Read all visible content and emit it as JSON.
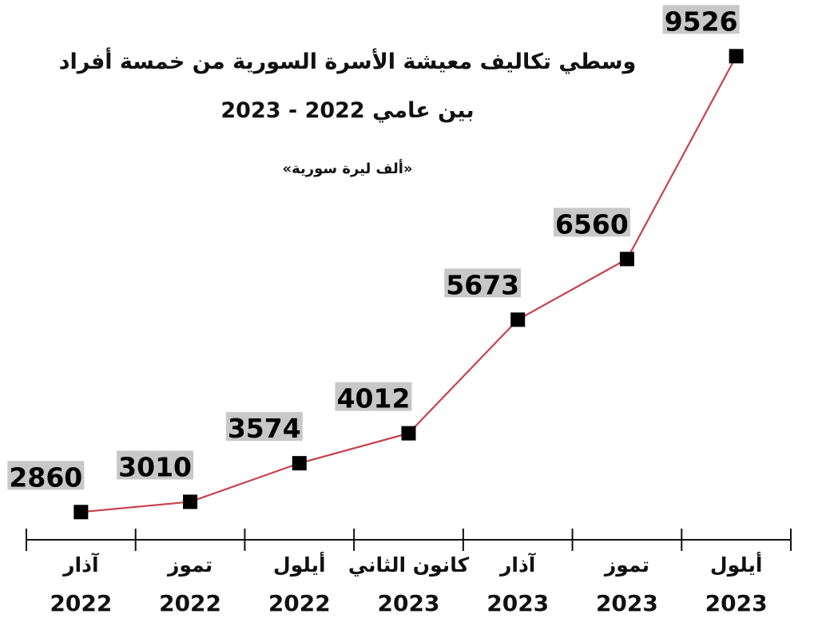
{
  "chart_data": {
    "type": "line",
    "title": "وسطي تكاليف معيشة الأسرة السورية من خمسة أفراد",
    "subtitle": "بين عامي 2022 - 2023",
    "unit": "«ألف ليرة سورية»",
    "categories": [
      {
        "month": "آذار",
        "year": "2022"
      },
      {
        "month": "تموز",
        "year": "2022"
      },
      {
        "month": "أيلول",
        "year": "2022"
      },
      {
        "month": "كانون الثاني",
        "year": "2023"
      },
      {
        "month": "آذار",
        "year": "2023"
      },
      {
        "month": "تموز",
        "year": "2023"
      },
      {
        "month": "أيلول",
        "year": "2023"
      }
    ],
    "values": [
      2860,
      3010,
      3574,
      4012,
      5673,
      6560,
      9526
    ],
    "data_labels": [
      "2860",
      "3010",
      "3574",
      "4012",
      "5673",
      "6560",
      "9526"
    ],
    "ylim": [
      2700,
      9600
    ],
    "grid": false,
    "colors": {
      "line": "#c8424f",
      "marker": "#000000",
      "label_bg": "#c8c8c8"
    }
  }
}
